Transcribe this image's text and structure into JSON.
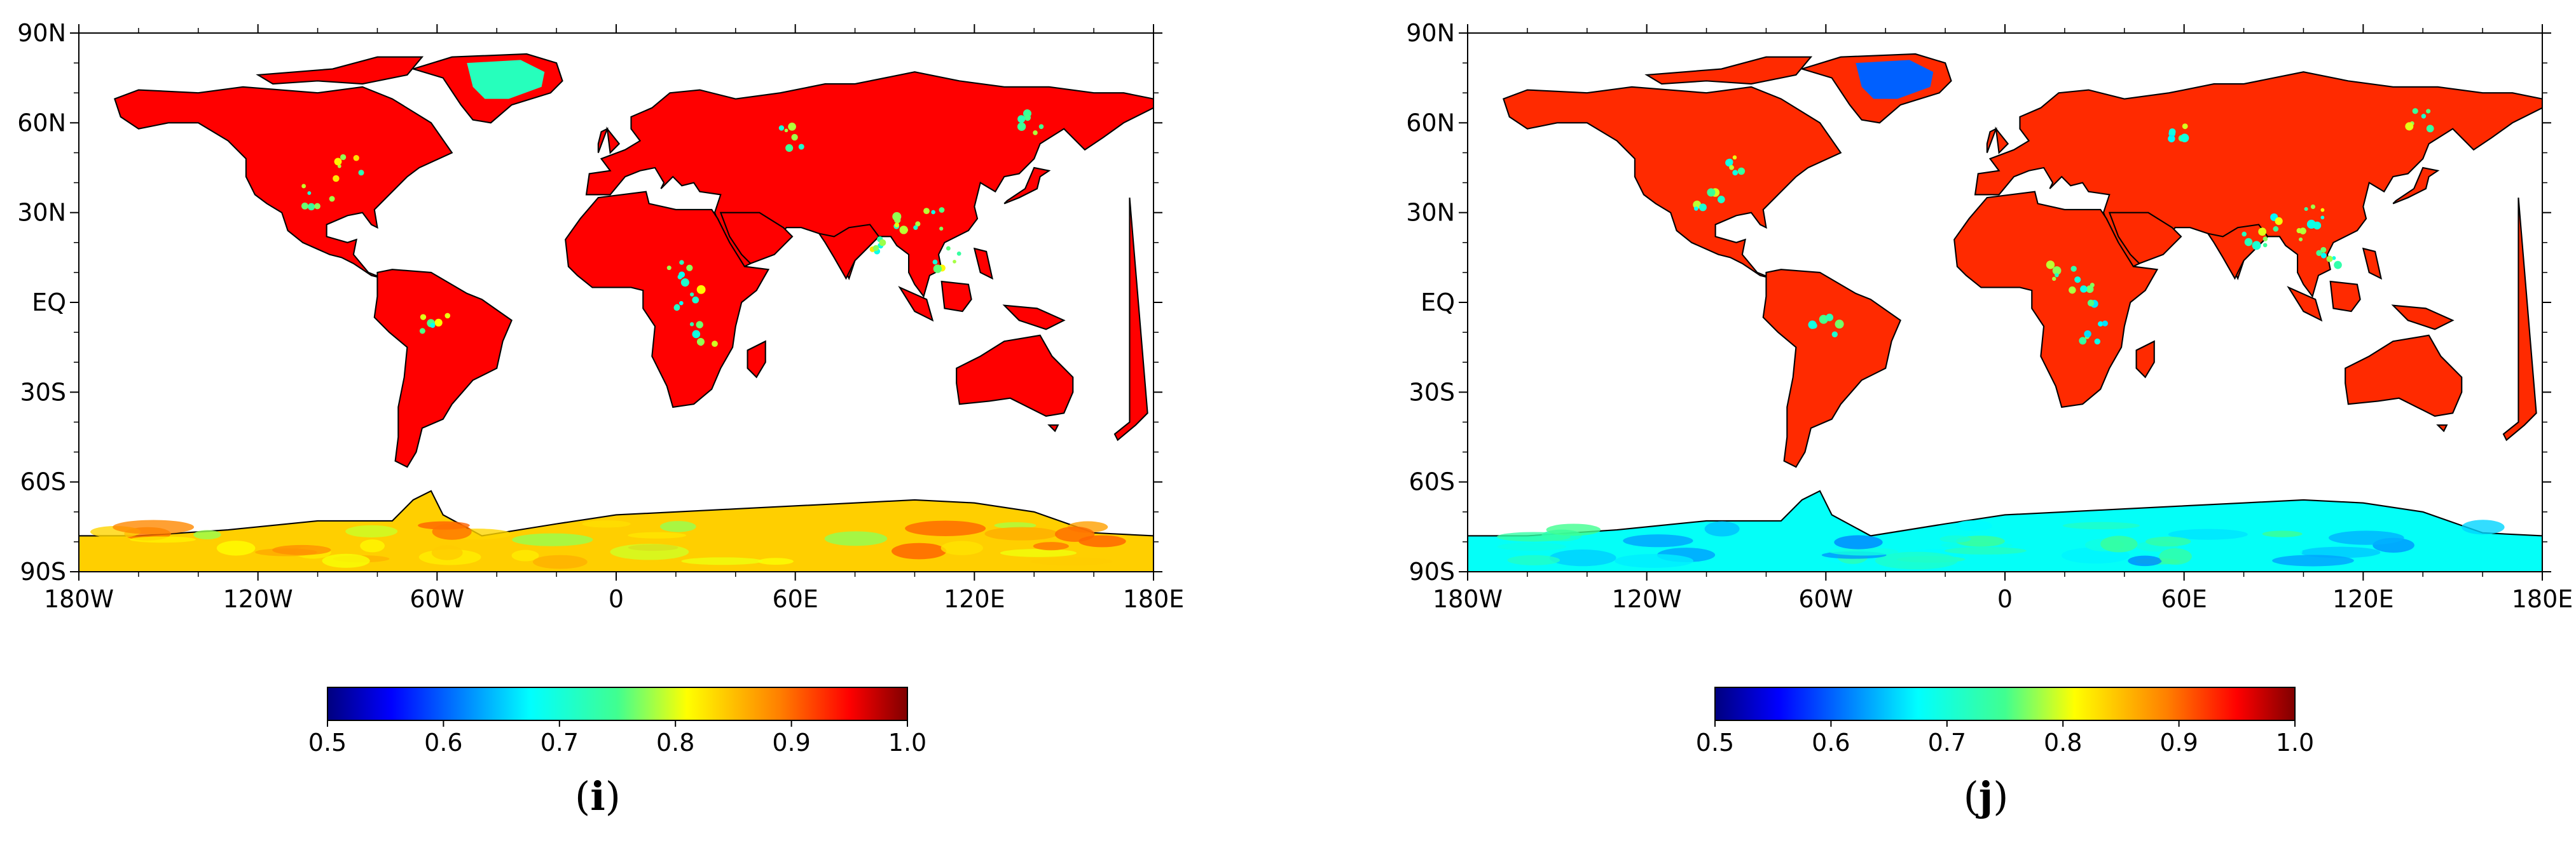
{
  "panels": [
    {
      "id": "i",
      "caption_letter": "i",
      "lat_ticks": [
        "90N",
        "60N",
        "30N",
        "EQ",
        "30S",
        "60S",
        "90S"
      ],
      "lon_ticks": [
        "180W",
        "120W",
        "60W",
        "0",
        "60E",
        "120E",
        "180E"
      ],
      "colorbar": {
        "ticks": [
          "0.5",
          "0.6",
          "0.7",
          "0.8",
          "0.9",
          "1.0"
        ],
        "min": 0.5,
        "max": 1.0
      },
      "land_value": 0.95,
      "greenland_value": 0.72,
      "antarctica_value": 0.84
    },
    {
      "id": "j",
      "caption_letter": "j",
      "lat_ticks": [
        "90N",
        "60N",
        "30N",
        "EQ",
        "30S",
        "60S",
        "90S"
      ],
      "lon_ticks": [
        "180W",
        "120W",
        "60W",
        "0",
        "60E",
        "120E",
        "180E"
      ],
      "colorbar": {
        "ticks": [
          "0.5",
          "0.6",
          "0.7",
          "0.8",
          "0.9",
          "1.0"
        ],
        "min": 0.5,
        "max": 1.0
      },
      "land_value": 0.93,
      "greenland_value": 0.6,
      "antarctica_value": 0.68
    }
  ],
  "colors": {
    "colormap": [
      "#00007f",
      "#0000ff",
      "#007fff",
      "#00ffff",
      "#7fff7f",
      "#ffff00",
      "#ff7f00",
      "#ff0000",
      "#7f0000"
    ],
    "land_i": "#e02010",
    "land_j": "#e43418",
    "greenland_i": "#27c8d6",
    "greenland_j": "#1a5ae0",
    "antarctica_i": "#f4a820",
    "antarctica_j": "#3fb8f0",
    "coast": "#000000"
  }
}
